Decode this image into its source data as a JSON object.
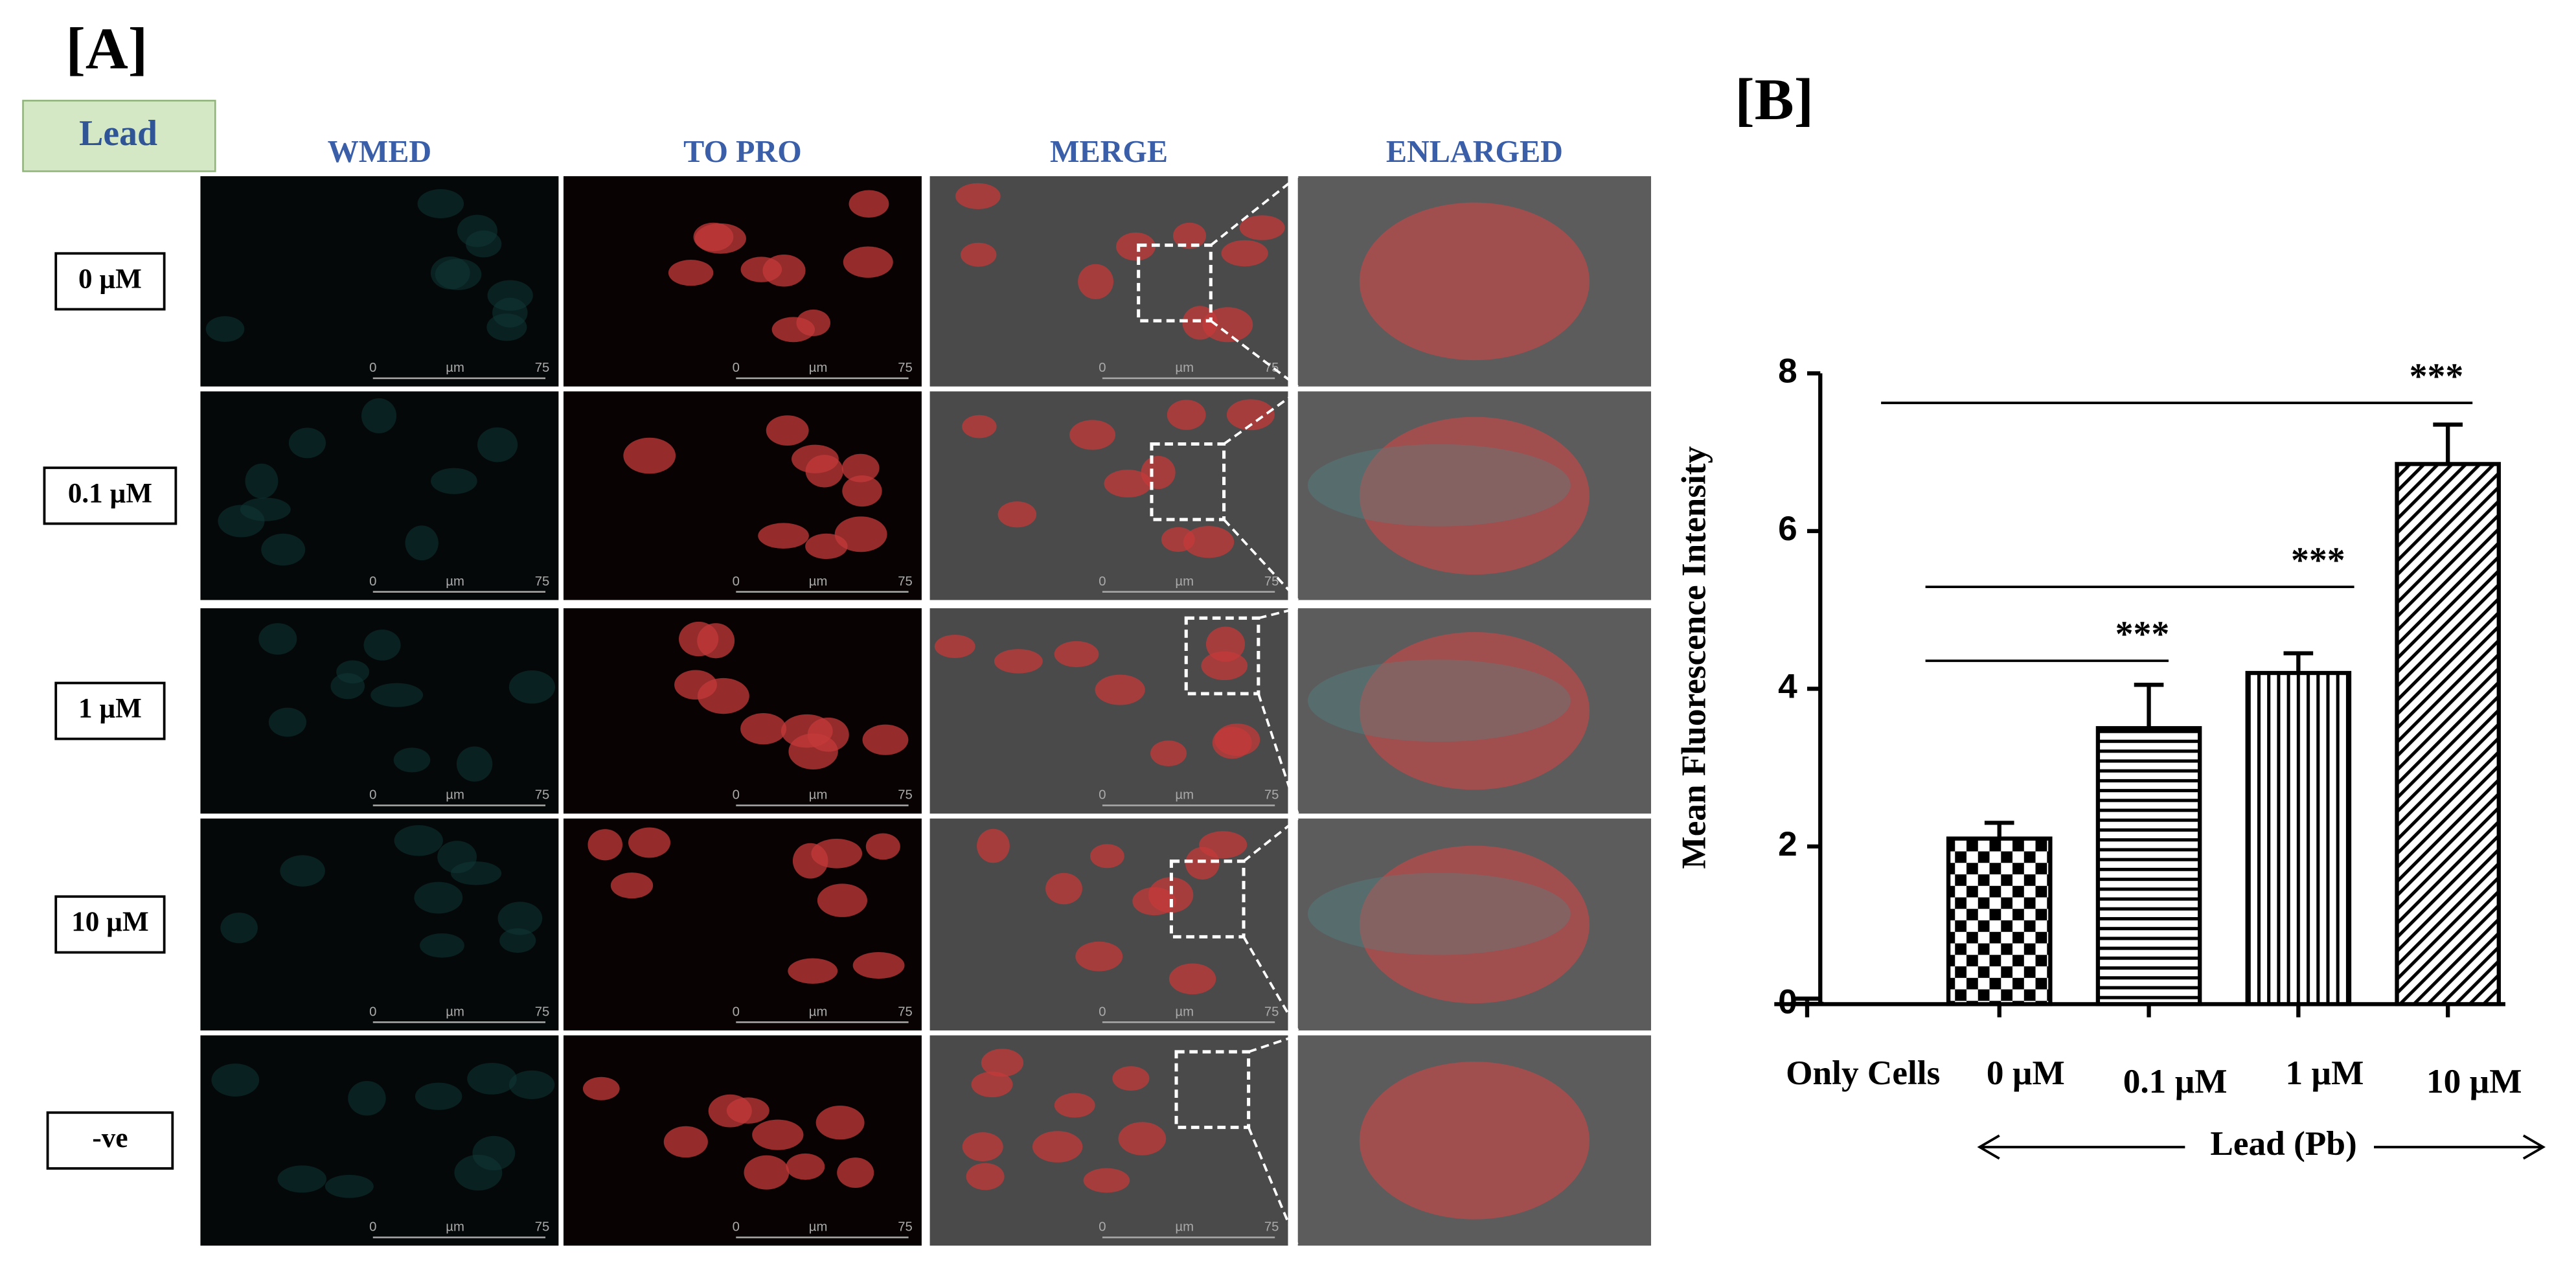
{
  "panel_a": {
    "label": "[A]",
    "header": "Lead",
    "columns": [
      "WMED",
      "TO PRO",
      "MERGE",
      "ENLARGED"
    ],
    "rows": [
      "0 µM",
      "0.1 µM",
      "1 µM",
      "10 µM",
      "-ve"
    ],
    "scale_bar": {
      "start": "0",
      "unit": "µm",
      "end": "75"
    }
  },
  "chart_data": {
    "type": "bar",
    "panel_label": "[B]",
    "ylabel": "Mean Fluorescence Intensity",
    "xlabel": "Lead (Pb)",
    "categories": [
      "Only Cells",
      "0 µM",
      "0.1 µM",
      "1 µM",
      "10 µM"
    ],
    "values": [
      0.03,
      2.1,
      3.5,
      4.2,
      6.85
    ],
    "errors": [
      0.04,
      0.2,
      0.55,
      0.25,
      0.5
    ],
    "ylim": [
      0,
      8
    ],
    "yticks": [
      0,
      2,
      4,
      6,
      8
    ],
    "color": "#000000",
    "significance": [
      "***",
      "***",
      "***"
    ]
  }
}
